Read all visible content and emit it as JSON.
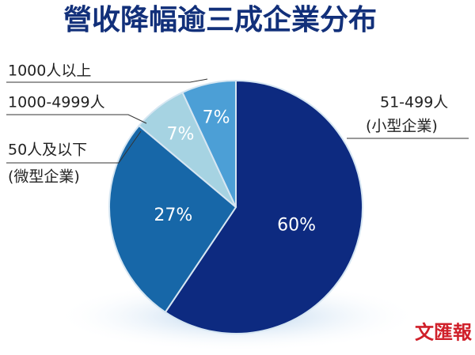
{
  "chart_data": {
    "type": "pie",
    "title": "營收降幅逾三成企業分布",
    "categories": [
      [
        "51-499人",
        "(小型企業)"
      ],
      [
        "50人及以下",
        "(微型企業)"
      ],
      [
        "1000-4999人"
      ],
      [
        "1000人以上"
      ]
    ],
    "values": [
      60,
      27,
      7,
      7
    ],
    "value_labels": [
      "60%",
      "27%",
      "7%",
      "7%"
    ],
    "colors": [
      "#0d2a80",
      "#1767a8",
      "#a6d3e2",
      "#4c9fd6"
    ],
    "source": "文匯報"
  }
}
